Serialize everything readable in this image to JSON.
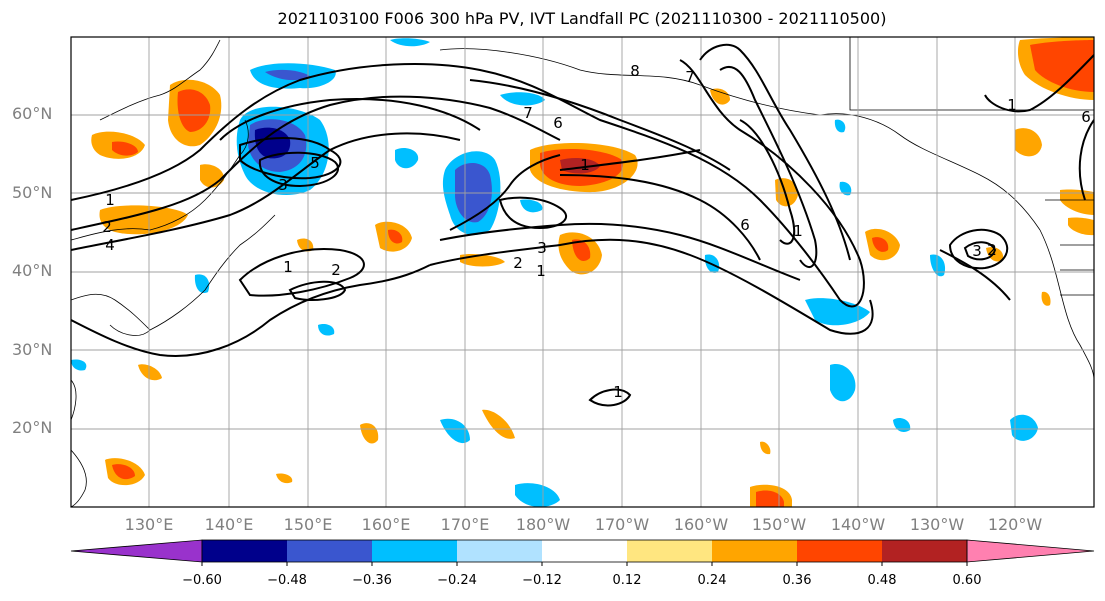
{
  "title": "2021103100 F006 300 hPa PV, IVT Landfall PC (2021110300 - 2021110500)",
  "map": {
    "lat_labels": [
      "60°N",
      "50°N",
      "40°N",
      "30°N",
      "20°N"
    ],
    "lon_labels": [
      "130°E",
      "140°E",
      "150°E",
      "160°E",
      "170°E",
      "180°W",
      "170°W",
      "160°W",
      "150°W",
      "140°W",
      "130°W",
      "120°W"
    ],
    "contour_labels": [
      "1",
      "2",
      "4",
      "3",
      "5",
      "6",
      "7",
      "1",
      "3",
      "2",
      "1",
      "6",
      "7",
      "8",
      "1",
      "2",
      "1",
      "3",
      "2",
      "1",
      "1",
      "6"
    ]
  },
  "colorbar": {
    "tick_labels": [
      "−0.60",
      "−0.48",
      "−0.36",
      "−0.24",
      "−0.12",
      "0.12",
      "0.24",
      "0.36",
      "0.48",
      "0.60"
    ],
    "colors": [
      "#9932cc",
      "#00008b",
      "#3a56cf",
      "#00bfff",
      "#b0e2ff",
      "#ffffff",
      "#ffe680",
      "#ffa500",
      "#ff4500",
      "#b22222",
      "#ff80b0"
    ]
  }
}
